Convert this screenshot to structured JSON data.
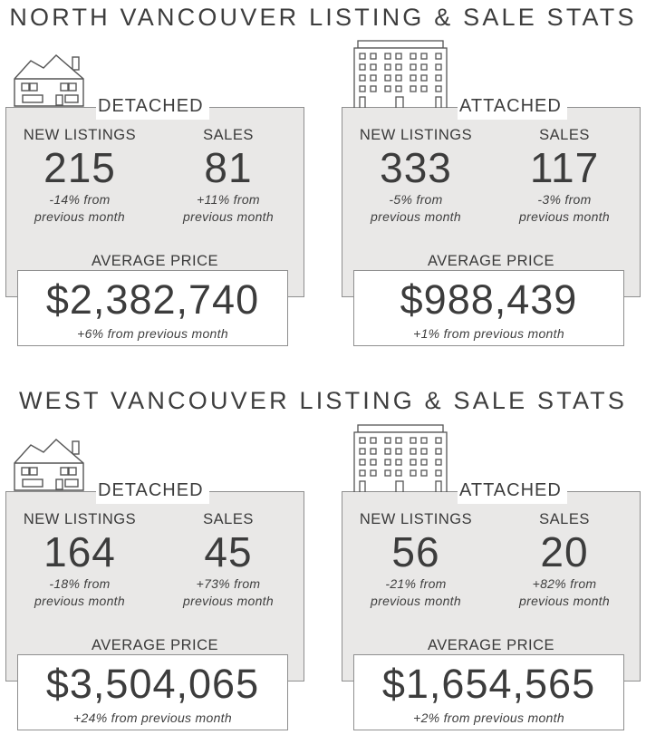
{
  "sections": [
    {
      "title": "NORTH VANCOUVER LISTING & SALE STATS",
      "cards": [
        {
          "type": "DETACHED",
          "new_listings_label": "NEW LISTINGS",
          "new_listings": "215",
          "new_listings_change_1": "-14% from",
          "new_listings_change_2": "previous month",
          "sales_label": "SALES",
          "sales": "81",
          "sales_change_1": "+11% from",
          "sales_change_2": "previous month",
          "avg_label": "AVERAGE PRICE",
          "avg_price": "$2,382,740",
          "avg_change": "+6% from previous month"
        },
        {
          "type": "ATTACHED",
          "new_listings_label": "NEW LISTINGS",
          "new_listings": "333",
          "new_listings_change_1": "-5% from",
          "new_listings_change_2": "previous month",
          "sales_label": "SALES",
          "sales": "117",
          "sales_change_1": "-3% from",
          "sales_change_2": "previous month",
          "avg_label": "AVERAGE PRICE",
          "avg_price": "$988,439",
          "avg_change": "+1% from previous month"
        }
      ]
    },
    {
      "title": "WEST VANCOUVER LISTING & SALE STATS",
      "cards": [
        {
          "type": "DETACHED",
          "new_listings_label": "NEW LISTINGS",
          "new_listings": "164",
          "new_listings_change_1": "-18% from",
          "new_listings_change_2": "previous month",
          "sales_label": "SALES",
          "sales": "45",
          "sales_change_1": "+73% from",
          "sales_change_2": "previous month",
          "avg_label": "AVERAGE PRICE",
          "avg_price": "$3,504,065",
          "avg_change": "+24% from previous month"
        },
        {
          "type": "ATTACHED",
          "new_listings_label": "NEW LISTINGS",
          "new_listings": "56",
          "new_listings_change_1": "-21% from",
          "new_listings_change_2": "previous month",
          "sales_label": "SALES",
          "sales": "20",
          "sales_change_1": "+82% from",
          "sales_change_2": "previous month",
          "avg_label": "AVERAGE PRICE",
          "avg_price": "$1,654,565",
          "avg_change": "+2% from previous month"
        }
      ]
    }
  ],
  "icons": {
    "detached": "house-icon",
    "attached": "apartment-building-icon"
  },
  "colors": {
    "panel_bg": "#e9e8e7",
    "border": "#8f8f8f",
    "text": "#3c3c3c"
  }
}
